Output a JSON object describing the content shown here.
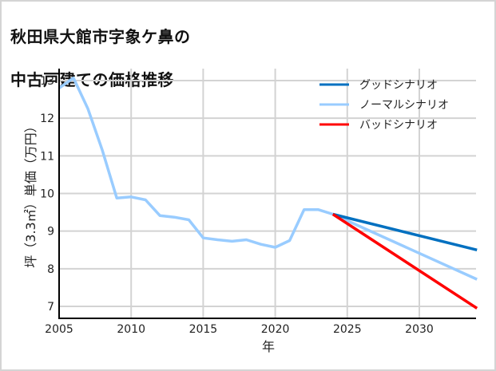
{
  "title_line1": "秋田県大館市字象ケ鼻の",
  "title_line2": "中古戸建ての価格推移",
  "chart_data": {
    "type": "line",
    "title": "秋田県大館市字象ケ鼻の中古戸建ての価格推移",
    "xlabel": "年",
    "ylabel": "坪（3.3㎡）単価（万円）",
    "xlim": [
      2005,
      2033.9
    ],
    "ylim": [
      6.7,
      13.4
    ],
    "xticks": [
      2005,
      2010,
      2015,
      2020,
      2025,
      2030
    ],
    "yticks": [
      7,
      8,
      9,
      10,
      11,
      12,
      13
    ],
    "grid": true,
    "legend_position": "upper right",
    "series": [
      {
        "name": "ノーマルシナリオ",
        "color": "#99ccff",
        "x": [
          2005,
          2006,
          2007,
          2008,
          2009,
          2010,
          2011,
          2012,
          2013,
          2014,
          2015,
          2016,
          2017,
          2018,
          2019,
          2020,
          2021,
          2022,
          2023,
          2024,
          2034
        ],
        "y": [
          12.8,
          13.07,
          12.25,
          11.15,
          9.88,
          9.91,
          9.83,
          9.41,
          9.37,
          9.3,
          8.82,
          8.77,
          8.73,
          8.77,
          8.65,
          8.57,
          8.75,
          9.57,
          9.57,
          9.45,
          7.72
        ]
      },
      {
        "name": "グッドシナリオ",
        "color": "#0070c0",
        "x": [
          2024,
          2034
        ],
        "y": [
          9.45,
          8.5
        ]
      },
      {
        "name": "バッドシナリオ",
        "color": "#ff0000",
        "x": [
          2024,
          2034
        ],
        "y": [
          9.45,
          6.95
        ]
      }
    ]
  },
  "legend": [
    {
      "label": "グッドシナリオ",
      "color": "#0070c0"
    },
    {
      "label": "ノーマルシナリオ",
      "color": "#99ccff"
    },
    {
      "label": "バッドシナリオ",
      "color": "#ff0000"
    }
  ]
}
